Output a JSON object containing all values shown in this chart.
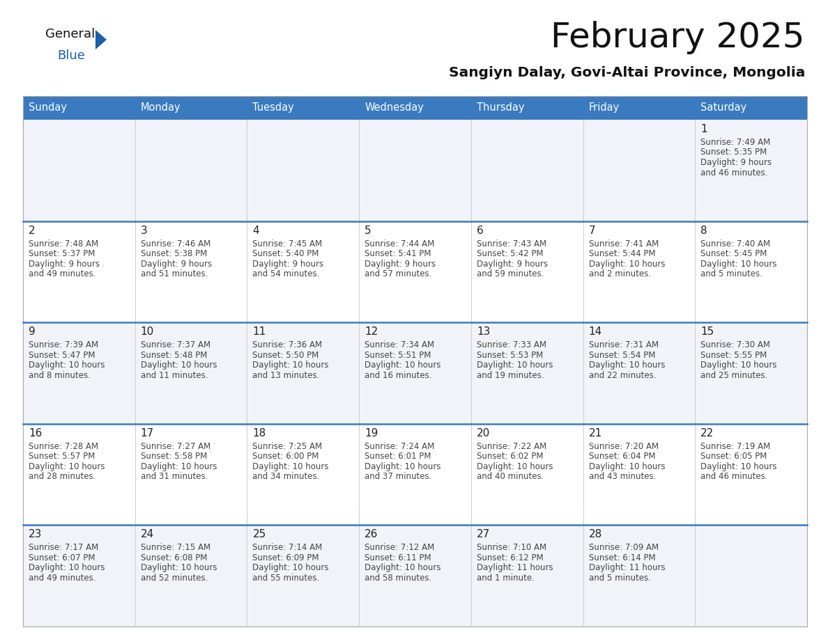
{
  "title": "February 2025",
  "subtitle": "Sangiyn Dalay, Govi-Altai Province, Mongolia",
  "days_of_week": [
    "Sunday",
    "Monday",
    "Tuesday",
    "Wednesday",
    "Thursday",
    "Friday",
    "Saturday"
  ],
  "header_bg_color": "#3a7abf",
  "header_text_color": "#ffffff",
  "row_bg_odd": "#f0f3f7",
  "row_bg_even": "#ffffff",
  "row_separator_color": "#3a7abf",
  "cell_border_color": "#cccccc",
  "text_color": "#444444",
  "day_num_color": "#222222",
  "calendar": [
    [
      null,
      null,
      null,
      null,
      null,
      null,
      {
        "day": 1,
        "sunrise": "7:49 AM",
        "sunset": "5:35 PM",
        "daylight": "9 hours",
        "daylight2": "and 46 minutes."
      }
    ],
    [
      {
        "day": 2,
        "sunrise": "7:48 AM",
        "sunset": "5:37 PM",
        "daylight": "9 hours",
        "daylight2": "and 49 minutes."
      },
      {
        "day": 3,
        "sunrise": "7:46 AM",
        "sunset": "5:38 PM",
        "daylight": "9 hours",
        "daylight2": "and 51 minutes."
      },
      {
        "day": 4,
        "sunrise": "7:45 AM",
        "sunset": "5:40 PM",
        "daylight": "9 hours",
        "daylight2": "and 54 minutes."
      },
      {
        "day": 5,
        "sunrise": "7:44 AM",
        "sunset": "5:41 PM",
        "daylight": "9 hours",
        "daylight2": "and 57 minutes."
      },
      {
        "day": 6,
        "sunrise": "7:43 AM",
        "sunset": "5:42 PM",
        "daylight": "9 hours",
        "daylight2": "and 59 minutes."
      },
      {
        "day": 7,
        "sunrise": "7:41 AM",
        "sunset": "5:44 PM",
        "daylight": "10 hours",
        "daylight2": "and 2 minutes."
      },
      {
        "day": 8,
        "sunrise": "7:40 AM",
        "sunset": "5:45 PM",
        "daylight": "10 hours",
        "daylight2": "and 5 minutes."
      }
    ],
    [
      {
        "day": 9,
        "sunrise": "7:39 AM",
        "sunset": "5:47 PM",
        "daylight": "10 hours",
        "daylight2": "and 8 minutes."
      },
      {
        "day": 10,
        "sunrise": "7:37 AM",
        "sunset": "5:48 PM",
        "daylight": "10 hours",
        "daylight2": "and 11 minutes."
      },
      {
        "day": 11,
        "sunrise": "7:36 AM",
        "sunset": "5:50 PM",
        "daylight": "10 hours",
        "daylight2": "and 13 minutes."
      },
      {
        "day": 12,
        "sunrise": "7:34 AM",
        "sunset": "5:51 PM",
        "daylight": "10 hours",
        "daylight2": "and 16 minutes."
      },
      {
        "day": 13,
        "sunrise": "7:33 AM",
        "sunset": "5:53 PM",
        "daylight": "10 hours",
        "daylight2": "and 19 minutes."
      },
      {
        "day": 14,
        "sunrise": "7:31 AM",
        "sunset": "5:54 PM",
        "daylight": "10 hours",
        "daylight2": "and 22 minutes."
      },
      {
        "day": 15,
        "sunrise": "7:30 AM",
        "sunset": "5:55 PM",
        "daylight": "10 hours",
        "daylight2": "and 25 minutes."
      }
    ],
    [
      {
        "day": 16,
        "sunrise": "7:28 AM",
        "sunset": "5:57 PM",
        "daylight": "10 hours",
        "daylight2": "and 28 minutes."
      },
      {
        "day": 17,
        "sunrise": "7:27 AM",
        "sunset": "5:58 PM",
        "daylight": "10 hours",
        "daylight2": "and 31 minutes."
      },
      {
        "day": 18,
        "sunrise": "7:25 AM",
        "sunset": "6:00 PM",
        "daylight": "10 hours",
        "daylight2": "and 34 minutes."
      },
      {
        "day": 19,
        "sunrise": "7:24 AM",
        "sunset": "6:01 PM",
        "daylight": "10 hours",
        "daylight2": "and 37 minutes."
      },
      {
        "day": 20,
        "sunrise": "7:22 AM",
        "sunset": "6:02 PM",
        "daylight": "10 hours",
        "daylight2": "and 40 minutes."
      },
      {
        "day": 21,
        "sunrise": "7:20 AM",
        "sunset": "6:04 PM",
        "daylight": "10 hours",
        "daylight2": "and 43 minutes."
      },
      {
        "day": 22,
        "sunrise": "7:19 AM",
        "sunset": "6:05 PM",
        "daylight": "10 hours",
        "daylight2": "and 46 minutes."
      }
    ],
    [
      {
        "day": 23,
        "sunrise": "7:17 AM",
        "sunset": "6:07 PM",
        "daylight": "10 hours",
        "daylight2": "and 49 minutes."
      },
      {
        "day": 24,
        "sunrise": "7:15 AM",
        "sunset": "6:08 PM",
        "daylight": "10 hours",
        "daylight2": "and 52 minutes."
      },
      {
        "day": 25,
        "sunrise": "7:14 AM",
        "sunset": "6:09 PM",
        "daylight": "10 hours",
        "daylight2": "and 55 minutes."
      },
      {
        "day": 26,
        "sunrise": "7:12 AM",
        "sunset": "6:11 PM",
        "daylight": "10 hours",
        "daylight2": "and 58 minutes."
      },
      {
        "day": 27,
        "sunrise": "7:10 AM",
        "sunset": "6:12 PM",
        "daylight": "11 hours",
        "daylight2": "and 1 minute."
      },
      {
        "day": 28,
        "sunrise": "7:09 AM",
        "sunset": "6:14 PM",
        "daylight": "11 hours",
        "daylight2": "and 5 minutes."
      },
      null
    ]
  ]
}
